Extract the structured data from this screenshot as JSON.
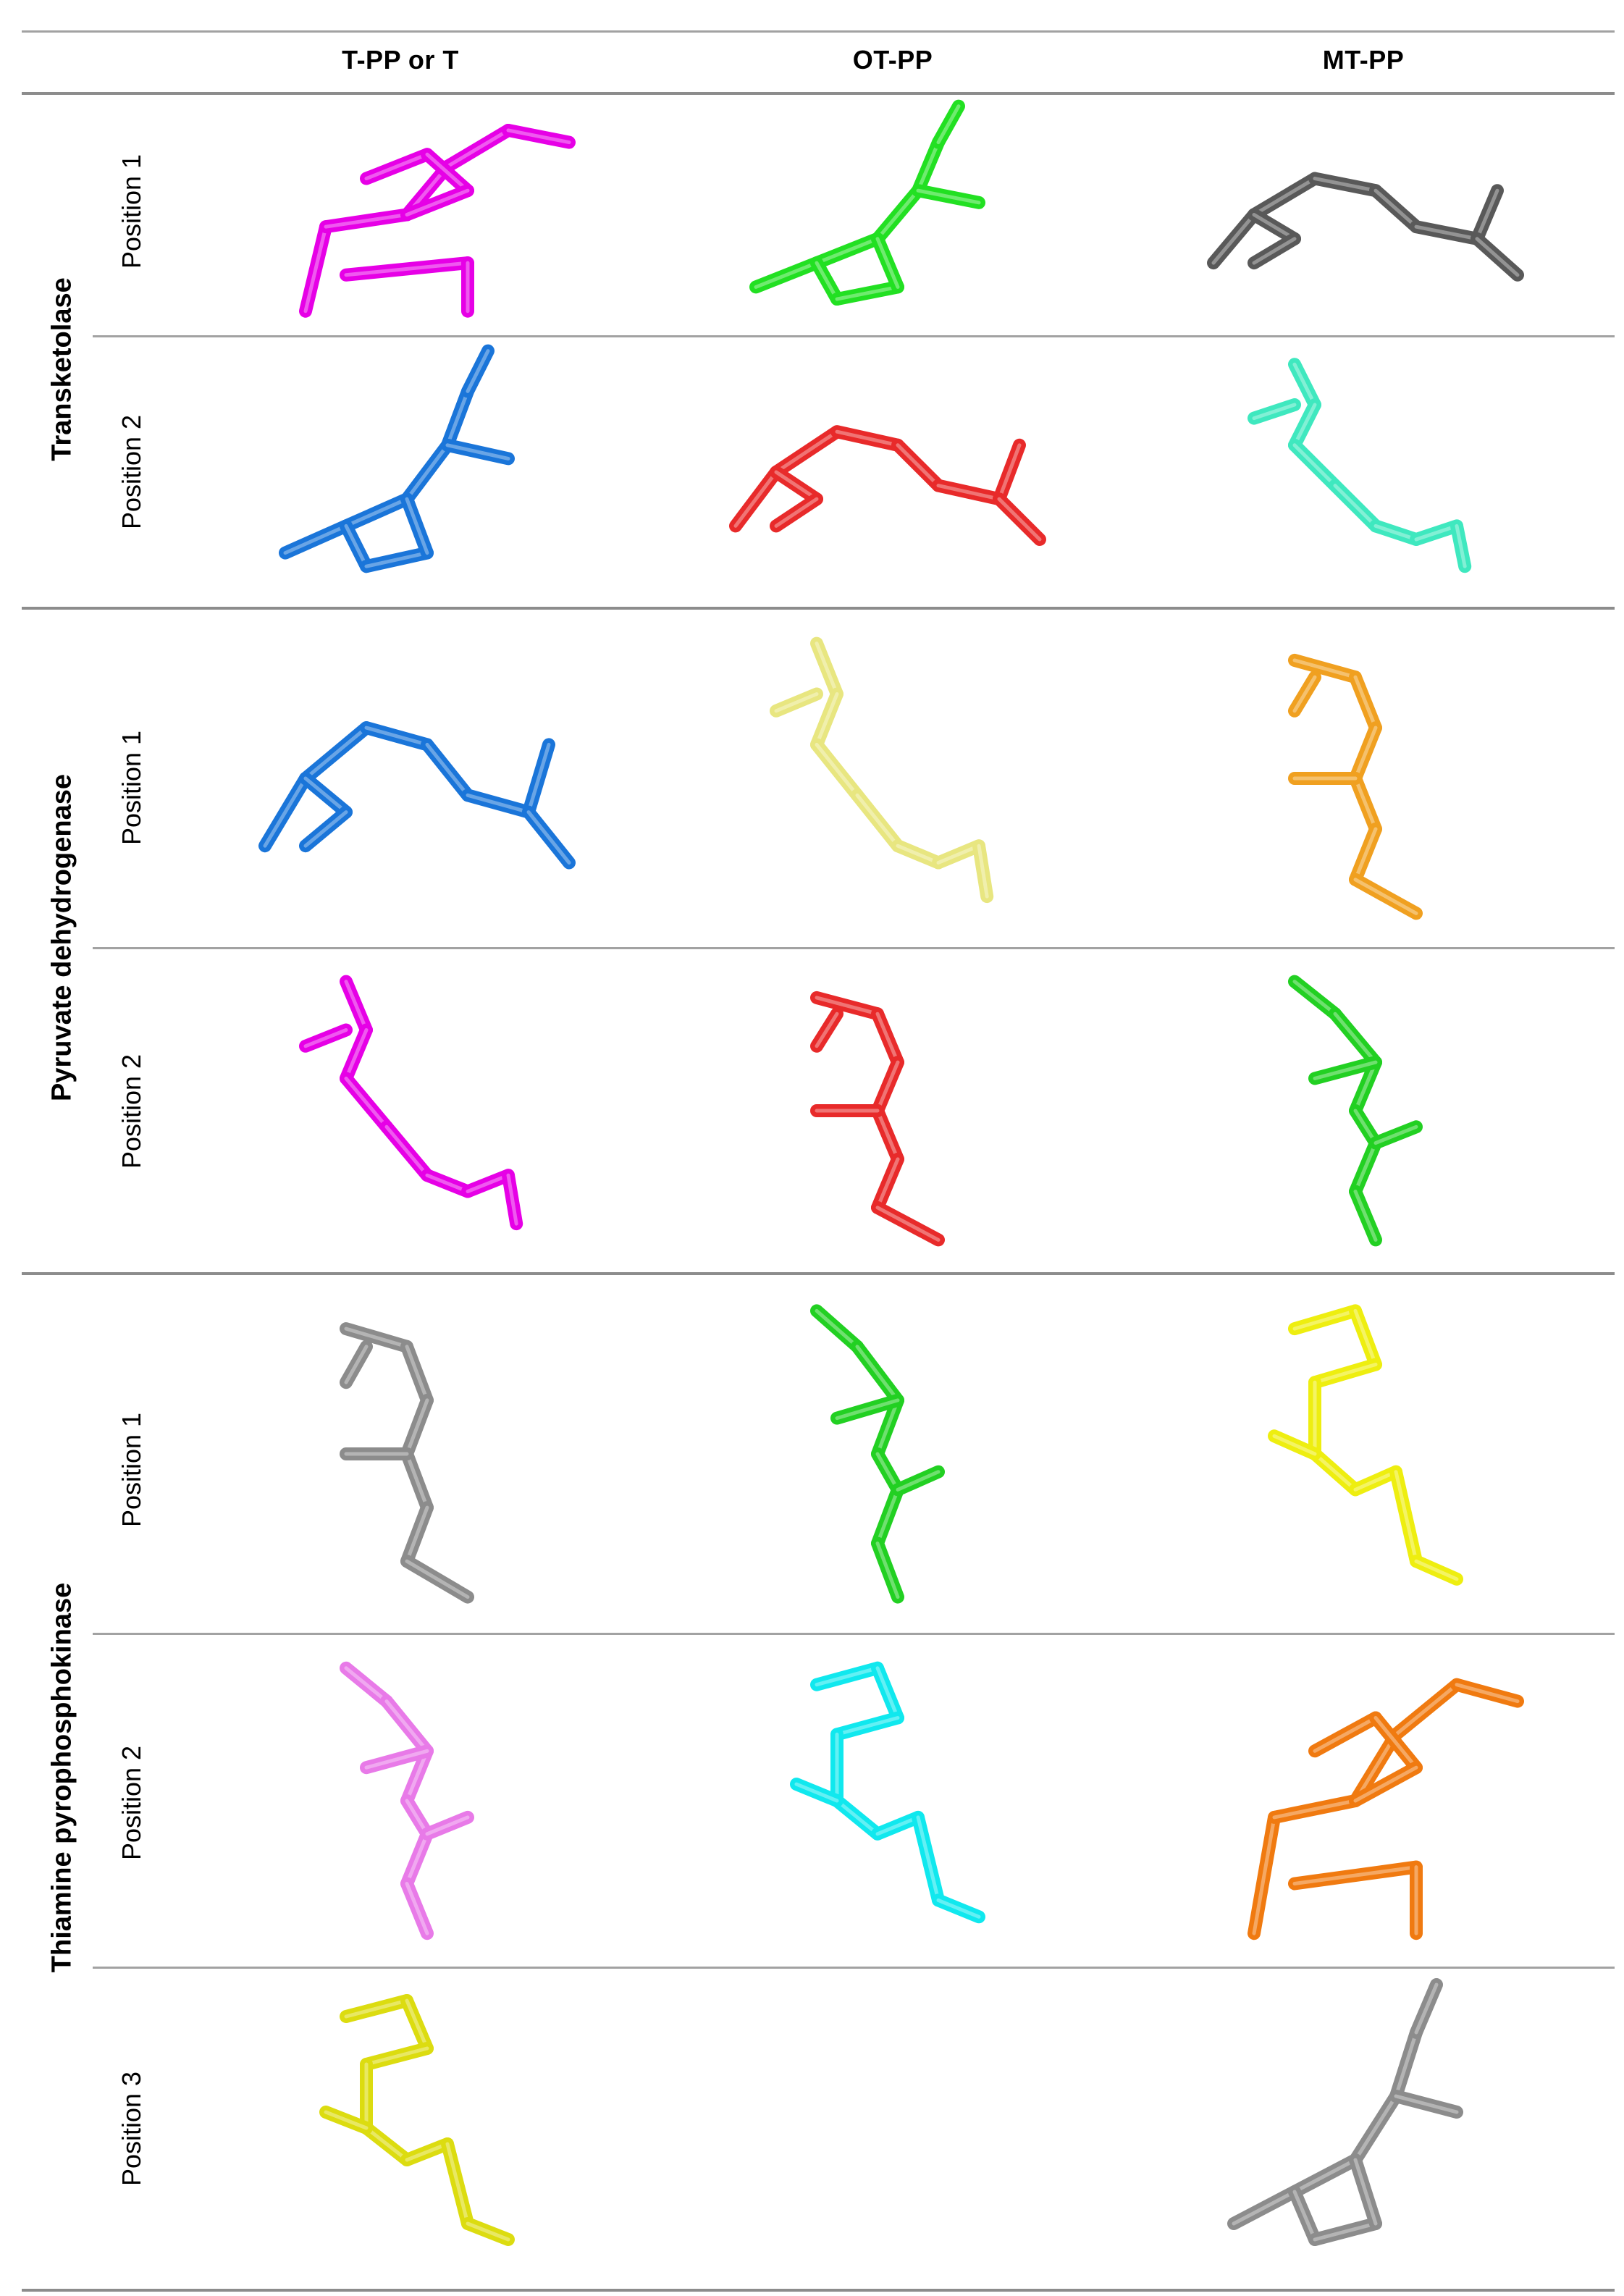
{
  "columns": [
    "T-PP or T",
    "OT-PP",
    "MT-PP"
  ],
  "enzymes": [
    {
      "name": "Transketolase",
      "positions": [
        "Position 1",
        "Position 2"
      ]
    },
    {
      "name": "Pyruvate dehydrogenase",
      "positions": [
        "Position 1",
        "Position 2"
      ]
    },
    {
      "name": "Thiamine pyrophosphokinase",
      "positions": [
        "Position 1",
        "Position 2",
        "Position 3"
      ]
    }
  ],
  "molecule_colors": [
    [
      "#e600e6",
      "#22e022",
      "#595959"
    ],
    [
      "#1a75d9",
      "#e82a2a",
      "#3fe8bf"
    ],
    [
      "#1a75d9",
      "#e8e680",
      "#f0a020"
    ],
    [
      "#e600e6",
      "#e82a2a",
      "#22d022"
    ],
    [
      "#8c8c8c",
      "#22d022",
      "#eeee10"
    ],
    [
      "#e87ae8",
      "#10e8ee",
      "#f07a10"
    ],
    [
      "#dcdc10",
      "",
      "#8c8c8c"
    ]
  ]
}
